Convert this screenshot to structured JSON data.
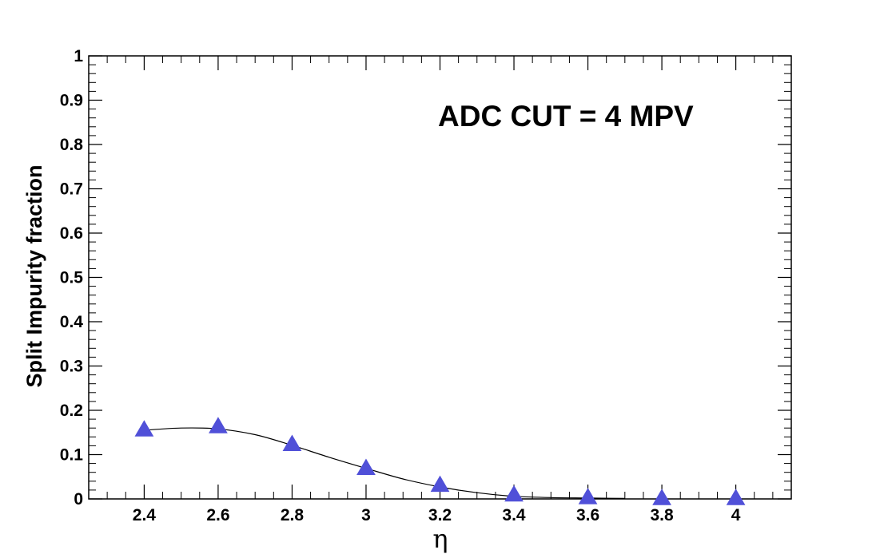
{
  "chart_data": {
    "type": "line",
    "title": "",
    "xlabel": "η",
    "ylabel": "Split Impurity fraction",
    "annotation": "ADC CUT = 4 MPV",
    "xlim": [
      2.25,
      4.15
    ],
    "ylim": [
      0,
      1
    ],
    "x_ticks": [
      2.4,
      2.6,
      2.8,
      3,
      3.2,
      3.4,
      3.6,
      3.8,
      4
    ],
    "x_tick_labels": [
      "2.4",
      "2.6",
      "2.8",
      "3",
      "3.2",
      "3.4",
      "3.6",
      "3.8",
      "4"
    ],
    "y_ticks": [
      0,
      0.1,
      0.2,
      0.3,
      0.4,
      0.5,
      0.6,
      0.7,
      0.8,
      0.9,
      1
    ],
    "y_tick_labels": [
      "0",
      "0.1",
      "0.2",
      "0.3",
      "0.4",
      "0.5",
      "0.6",
      "0.7",
      "0.8",
      "0.9",
      "1"
    ],
    "grid": false,
    "series": [
      {
        "marker": "triangle-up",
        "color": "#5050d8",
        "x": [
          2.4,
          2.6,
          2.8,
          3.0,
          3.2,
          3.4,
          3.6,
          3.8,
          4.0
        ],
        "y": [
          0.155,
          0.162,
          0.122,
          0.068,
          0.03,
          0.008,
          0.002,
          0.0,
          0.0
        ]
      }
    ],
    "fit_curve": {
      "color": "#000000",
      "x": [
        2.4,
        2.5,
        2.6,
        2.7,
        2.8,
        2.9,
        3.0,
        3.1,
        3.2,
        3.3,
        3.4,
        3.5,
        3.6,
        3.7
      ],
      "y": [
        0.155,
        0.16,
        0.158,
        0.145,
        0.121,
        0.094,
        0.069,
        0.045,
        0.027,
        0.014,
        0.006,
        0.003,
        0.002,
        0.001
      ]
    }
  }
}
